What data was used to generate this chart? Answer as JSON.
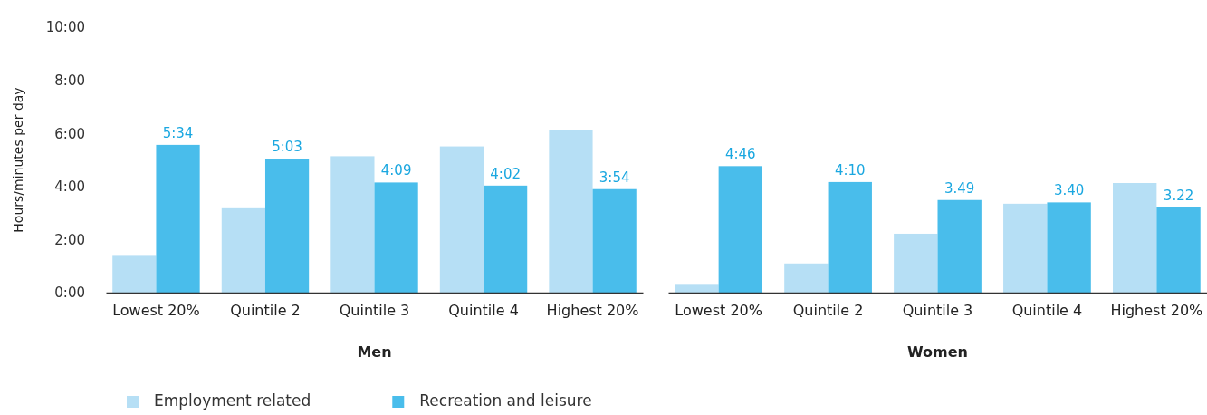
{
  "chart_data": [
    {
      "type": "bar",
      "xlabel": "Men",
      "ylabel": "Hours/minutes per day",
      "categories": [
        "Lowest 20%",
        "Quintile 2",
        "Quintile 3",
        "Quintile 4",
        "Highest 20%"
      ],
      "series": [
        {
          "name": "Employment related",
          "color": "#b6dff5",
          "values": [
            1.42,
            3.18,
            5.14,
            5.51,
            6.11
          ]
        },
        {
          "name": "Recreation and leisure",
          "color": "#49bdeb",
          "values": [
            5.567,
            5.05,
            4.15,
            4.033,
            3.9
          ],
          "value_labels": [
            "5:34",
            "5:03",
            "4:09",
            "4:02",
            "3:54"
          ]
        }
      ],
      "ylim": [
        0,
        10
      ],
      "yticks": [
        {
          "value": 0,
          "label": "0:00"
        },
        {
          "value": 2,
          "label": "2:00"
        },
        {
          "value": 4,
          "label": "4:00"
        },
        {
          "value": 6,
          "label": "6:00"
        },
        {
          "value": 8,
          "label": "8:00"
        },
        {
          "value": 10,
          "label": "10:00"
        }
      ],
      "legend": "bottom"
    },
    {
      "type": "bar",
      "xlabel": "Women",
      "categories": [
        "Lowest 20%",
        "Quintile 2",
        "Quintile 3",
        "Quintile 4",
        "Highest 20%"
      ],
      "series": [
        {
          "color": "#b6dff5",
          "values": [
            0.33,
            1.1,
            2.22,
            3.35,
            4.13
          ]
        },
        {
          "color": "#49bdeb",
          "values": [
            4.767,
            4.167,
            3.49,
            3.4,
            3.22
          ],
          "value_labels": [
            "4:46",
            "4:10",
            "3.49",
            "3.40",
            "3.22"
          ]
        }
      ],
      "ylim": [
        0,
        10
      ],
      "tick_labels": "x"
    }
  ]
}
